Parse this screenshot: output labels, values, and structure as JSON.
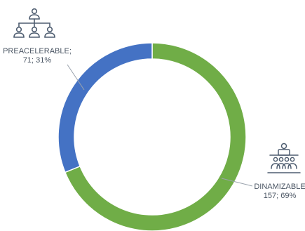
{
  "chart_data": {
    "type": "pie",
    "variant": "donut",
    "title": "",
    "legend": "none",
    "series": [
      {
        "name": "PREACELERABLE",
        "value": 71,
        "percent": "31%",
        "label": "PREACELERABLE;",
        "value_label": "71; 31%",
        "color": "#4472c4",
        "icon": "org-hierarchy-icon"
      },
      {
        "name": "DINAMIZABLE",
        "value": 157,
        "percent": "69%",
        "label": "DINAMIZABLE",
        "value_label": "157; 69%",
        "color": "#70ad47",
        "icon": "audience-presentation-icon"
      }
    ]
  },
  "colors": {
    "icon_stroke": "#4e5d70",
    "label_text": "#4a5563",
    "leader_line": "#9aa3ad"
  }
}
